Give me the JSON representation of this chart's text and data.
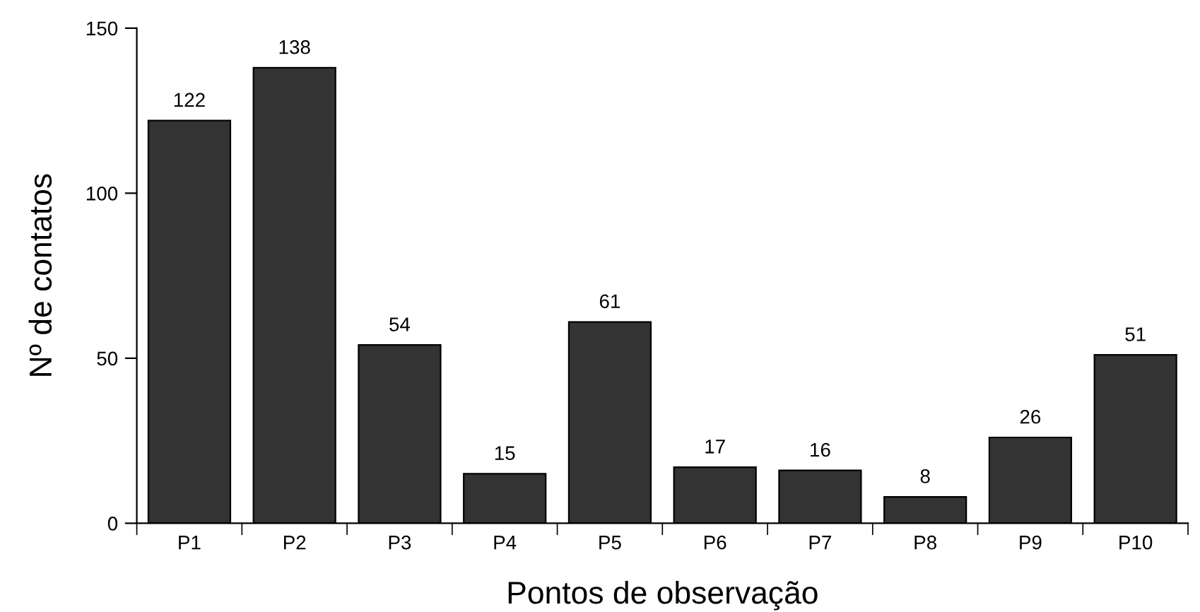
{
  "chart_data": {
    "type": "bar",
    "xlabel": "Pontos de observação",
    "ylabel": "Nº de contatos",
    "categories": [
      "P1",
      "P2",
      "P3",
      "P4",
      "P5",
      "P6",
      "P7",
      "P8",
      "P9",
      "P10"
    ],
    "values": [
      122,
      138,
      54,
      15,
      61,
      17,
      16,
      8,
      26,
      51
    ],
    "color": "#333333",
    "ylim": [
      0,
      150
    ],
    "yticks": [
      0,
      50,
      100,
      150
    ],
    "grid": false,
    "data_labels": true
  }
}
